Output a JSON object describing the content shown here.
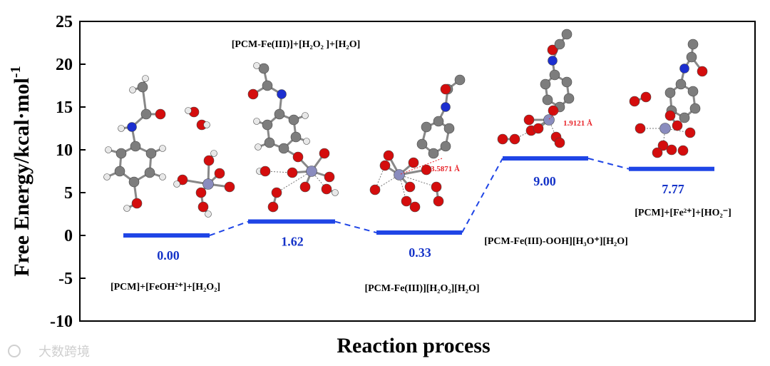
{
  "chart_data": {
    "type": "line",
    "ylabel": "Free Energy/kcal·mol",
    "ylabel_superscript": "-1",
    "xlabel": "Reaction process",
    "ylim": [
      -10,
      25
    ],
    "yticks": [
      "25",
      "20",
      "15",
      "10",
      "5",
      "0",
      "-5",
      "-10"
    ],
    "level_color": "#1f45e6",
    "connector_color": "#1f45e6",
    "states": [
      {
        "value": 0.0,
        "value_label": "0.00",
        "species": "[PCM]+[FeOH²⁺]+[H₂O₂]"
      },
      {
        "value": 1.62,
        "value_label": "1.62",
        "species": "[PCM-Fe(III)]+[H₂O₂ ]+[H₂O]"
      },
      {
        "value": 0.33,
        "value_label": "0.33",
        "species": "[PCM-Fe(III)][H₂O₂][H₂O]"
      },
      {
        "value": 9.0,
        "value_label": "9.00",
        "species": "[PCM-Fe(III)-OOH][H₃O⁺][H₂O]"
      },
      {
        "value": 7.77,
        "value_label": "7.77",
        "species": "[PCM]+[Fe²⁺]+[HO₂⁻]"
      }
    ],
    "annotations": [
      "3.5871 Å",
      "1.9121 Å"
    ]
  },
  "watermark": "大数跨境"
}
